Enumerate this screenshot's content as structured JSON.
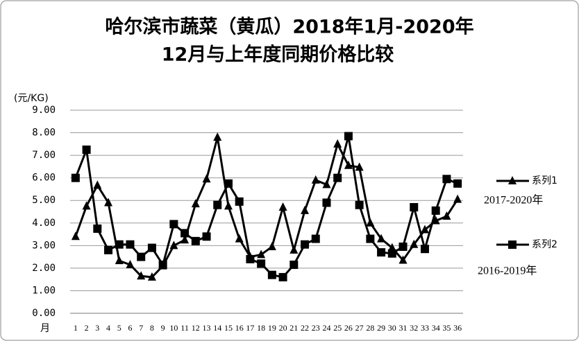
{
  "chart_data": {
    "type": "line",
    "title": [
      "哈尔滨市蔬菜（黄瓜）2018年1月-2020年",
      "12月与上年度同期价格比较"
    ],
    "y_label": "(元/KG)",
    "x_label": "月",
    "categories": [
      "1",
      "2",
      "3",
      "4",
      "5",
      "6",
      "7",
      "8",
      "9",
      "10",
      "11",
      "12",
      "13",
      "14",
      "15",
      "16",
      "17",
      "18",
      "19",
      "20",
      "21",
      "22",
      "23",
      "24",
      "25",
      "26",
      "27",
      "28",
      "29",
      "30",
      "31",
      "32",
      "33",
      "34",
      "35",
      "36"
    ],
    "series": [
      {
        "name": "系列1",
        "color": "#000000",
        "marker": "triangle",
        "annotation": "2017-2020年",
        "values": [
          3.4,
          4.75,
          5.67,
          4.9,
          2.33,
          2.15,
          1.65,
          1.6,
          2.1,
          3.0,
          3.25,
          4.85,
          5.95,
          7.8,
          4.75,
          3.3,
          2.5,
          2.6,
          2.95,
          4.7,
          2.8,
          4.55,
          5.9,
          5.7,
          7.5,
          6.55,
          6.47,
          4.0,
          3.3,
          2.9,
          2.35,
          3.05,
          3.7,
          4.1,
          4.3,
          5.05
        ]
      },
      {
        "name": "系列2",
        "color": "#000000",
        "marker": "square",
        "annotation": "2016-2019年",
        "values": [
          6.0,
          7.25,
          3.75,
          2.8,
          3.05,
          3.05,
          2.5,
          2.9,
          2.15,
          3.95,
          3.55,
          3.2,
          3.4,
          4.8,
          5.75,
          4.95,
          2.4,
          2.2,
          1.7,
          1.6,
          2.15,
          3.05,
          3.3,
          4.9,
          6.0,
          7.85,
          4.8,
          3.3,
          2.7,
          2.65,
          2.95,
          4.7,
          2.85,
          4.55,
          5.95,
          5.75
        ]
      }
    ],
    "ylim": [
      0,
      9
    ],
    "yticks": [
      {
        "value": 0,
        "label": "0.00"
      },
      {
        "value": 1,
        "label": "1.00"
      },
      {
        "value": 2,
        "label": "2.00"
      },
      {
        "value": 3,
        "label": "3.00"
      },
      {
        "value": 4,
        "label": "4.00"
      },
      {
        "value": 5,
        "label": "5.00"
      },
      {
        "value": 6,
        "label": "6.00"
      },
      {
        "value": 7,
        "label": "7.00"
      },
      {
        "value": 8,
        "label": "8.00"
      },
      {
        "value": 9,
        "label": "9.00"
      }
    ],
    "grid": true,
    "legend": "right"
  }
}
